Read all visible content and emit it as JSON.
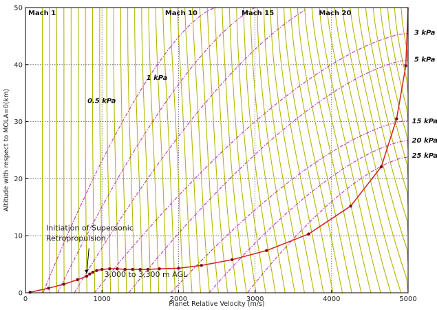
{
  "chart_data": {
    "type": "line",
    "xlabel": "Planet Relative Velocity (m/s)",
    "ylabel": "Altitude with respect to MOLA=0(km)",
    "xlim": [
      0,
      5000
    ],
    "ylim": [
      0,
      50
    ],
    "x_ticks": [
      0,
      1000,
      2000,
      3000,
      4000,
      5000
    ],
    "y_ticks": [
      0,
      10,
      20,
      30,
      40,
      50
    ],
    "grid": true,
    "colors": {
      "trajectory": "#d62728",
      "trajectory_points": "#7a1020",
      "mach_lines": "#b8b400",
      "pressure_lines": "#c040c0",
      "grid": "#555555"
    },
    "trajectory": {
      "x": [
        60,
        300,
        500,
        680,
        800,
        840,
        880,
        930,
        1000,
        1100,
        1200,
        1300,
        1400,
        1500,
        1600,
        1750,
        2000,
        2300,
        2700,
        3150,
        3700,
        4250,
        4650,
        4850,
        4970,
        5000
      ],
      "y": [
        0.1,
        0.8,
        1.5,
        2.3,
        2.9,
        3.3,
        3.6,
        3.9,
        4.1,
        4.2,
        4.2,
        4.1,
        4.1,
        4.1,
        4.1,
        4.2,
        4.3,
        4.8,
        5.8,
        7.4,
        10.3,
        15.2,
        22.1,
        30.5,
        39.8,
        50
      ]
    },
    "mach_lines": [
      {
        "label": "Mach 1",
        "x_top": 240,
        "x_bottom": 250
      },
      {
        "label": "Mach 10",
        "x_top": 2000,
        "x_bottom": 2450
      },
      {
        "label": "Mach 15",
        "x_top": 3000,
        "x_bottom": 3680
      },
      {
        "label": "Mach 20",
        "x_top": 4010,
        "x_bottom": 4900
      }
    ],
    "pressure_lines": [
      {
        "label": "0.5 kPa",
        "label_x": 810,
        "label_y": 33.3
      },
      {
        "label": "1 kPa",
        "label_x": 1580,
        "label_y": 37.3
      },
      {
        "label": "3 kPa",
        "label_x": 5080,
        "label_y": 45.2
      },
      {
        "label": "5 kPa",
        "label_x": 5080,
        "label_y": 40.5
      },
      {
        "label": "15 kPa",
        "label_x": 5050,
        "label_y": 29.7
      },
      {
        "label": "20 kPa",
        "label_x": 5050,
        "label_y": 26.3
      },
      {
        "label": "25 kPa",
        "label_x": 5050,
        "label_y": 23.7
      }
    ],
    "annotations": [
      {
        "text": "Initiation of Supersonic",
        "x": 270,
        "y": 10.9
      },
      {
        "text": "Retropropulsion",
        "x": 270,
        "y": 9.1
      },
      {
        "text": "3,000 to 3,300 m AGL",
        "x": 1030,
        "y": 2.8
      }
    ]
  }
}
